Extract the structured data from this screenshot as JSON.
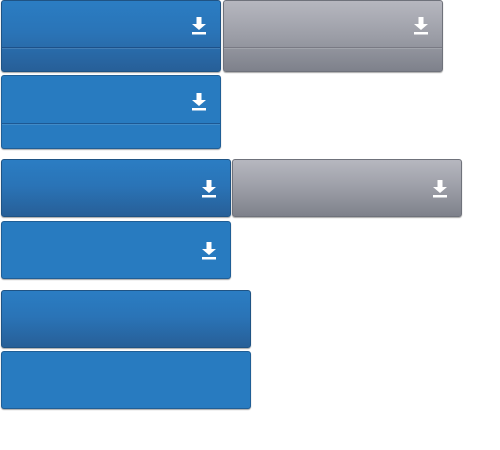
{
  "icons": {
    "download": "download-icon"
  },
  "colors": {
    "blue": "#2878bd",
    "blue_dark": "#275f98",
    "gray": "#9c9ea7",
    "icon": "#ffffff"
  },
  "buttons": [
    {
      "variant": "blue",
      "has_icon": true,
      "split": true
    },
    {
      "variant": "gray",
      "has_icon": true,
      "split": true
    },
    {
      "variant": "blue-flat",
      "has_icon": true,
      "split": true
    },
    {
      "variant": "blue",
      "has_icon": true,
      "split": false
    },
    {
      "variant": "gray",
      "has_icon": true,
      "split": false
    },
    {
      "variant": "blue-flat",
      "has_icon": true,
      "split": false
    },
    {
      "variant": "blue",
      "has_icon": false,
      "split": false
    },
    {
      "variant": "blue-flat",
      "has_icon": false,
      "split": false
    }
  ]
}
